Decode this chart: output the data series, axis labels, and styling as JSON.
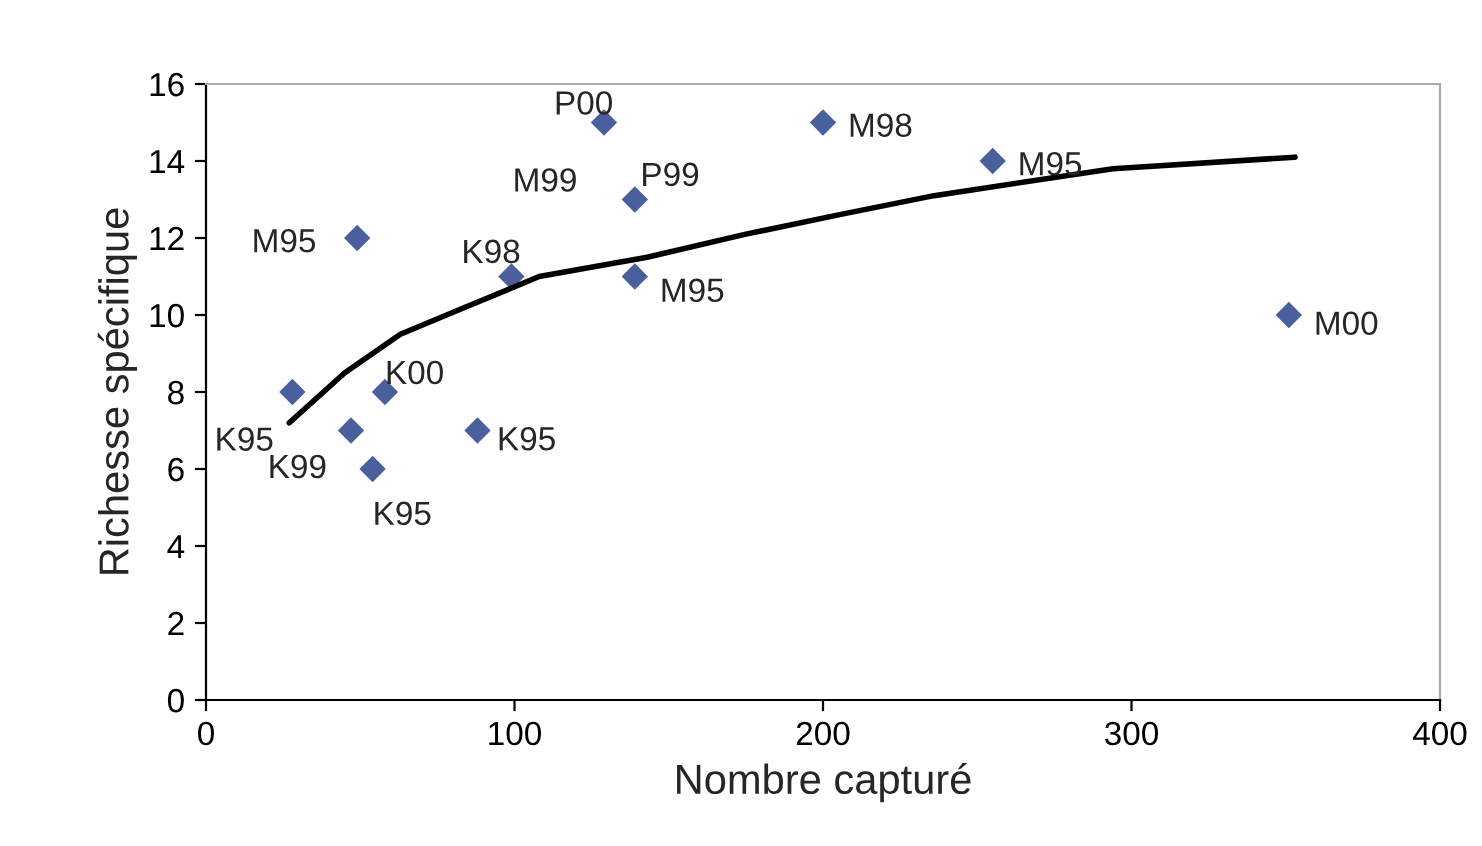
{
  "chart_data": {
    "type": "scatter",
    "xlabel": "Nombre capturé",
    "ylabel": "Richesse spécifique",
    "xlim": [
      0,
      400
    ],
    "xticks": [
      0,
      100,
      200,
      300,
      400
    ],
    "ylim": [
      0,
      16
    ],
    "yticks": [
      0,
      2,
      4,
      6,
      8,
      10,
      12,
      14,
      16
    ],
    "grid": false,
    "legend": false,
    "marker": "diamond",
    "series": [
      {
        "color": "#4a5f9e",
        "x": [
          28,
          47,
          54,
          58,
          49,
          99,
          88,
          129,
          139,
          139,
          200,
          255,
          351
        ],
        "values": [
          8,
          7,
          6,
          8,
          12,
          11,
          7,
          15,
          13,
          11,
          15,
          14,
          10
        ]
      },
      {
        "type": "line",
        "color": "#000000",
        "marker": "none",
        "x": [
          27,
          45,
          63,
          84,
          108,
          143,
          175,
          205,
          236,
          294,
          353
        ],
        "values": [
          7.2,
          8.5,
          9.5,
          10.2,
          11.0,
          11.5,
          12.1,
          12.6,
          13.1,
          13.8,
          14.1
        ]
      }
    ],
    "annotations": [
      {
        "text": "K95",
        "x": 28,
        "y": 8
      },
      {
        "text": "K99",
        "x": 47,
        "y": 7
      },
      {
        "text": "K95",
        "x": 54,
        "y": 6
      },
      {
        "text": "K00",
        "x": 58,
        "y": 8
      },
      {
        "text": "M95",
        "x": 49,
        "y": 12
      },
      {
        "text": "K98",
        "x": 99,
        "y": 11
      },
      {
        "text": "K95",
        "x": 88,
        "y": 7
      },
      {
        "text": "P00",
        "x": 129,
        "y": 15
      },
      {
        "text": "M99",
        "x": 139,
        "y": 13
      },
      {
        "text": "P99",
        "x": 139,
        "y": 13
      },
      {
        "text": "M95",
        "x": 139,
        "y": 11
      },
      {
        "text": "M98",
        "x": 200,
        "y": 15
      },
      {
        "text": "M95",
        "x": 255,
        "y": 14
      },
      {
        "text": "M00",
        "x": 351,
        "y": 10
      }
    ]
  }
}
